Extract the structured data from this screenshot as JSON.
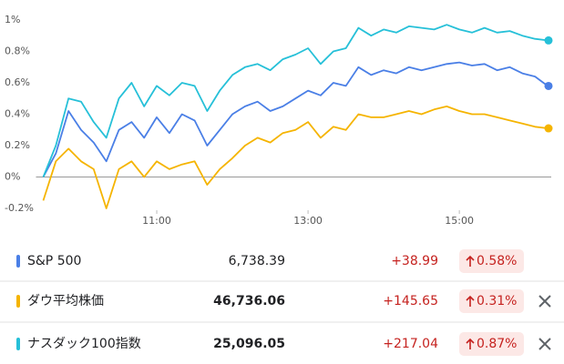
{
  "chart_data": {
    "type": "line",
    "x": [
      "09:30",
      "09:40",
      "09:50",
      "10:00",
      "10:10",
      "10:20",
      "10:30",
      "10:40",
      "10:50",
      "11:00",
      "11:10",
      "11:20",
      "11:30",
      "11:40",
      "11:50",
      "12:00",
      "12:10",
      "12:20",
      "12:30",
      "12:40",
      "12:50",
      "13:00",
      "13:10",
      "13:20",
      "13:30",
      "13:40",
      "13:50",
      "14:00",
      "14:10",
      "14:20",
      "14:30",
      "14:40",
      "14:50",
      "15:00",
      "15:10",
      "15:20",
      "15:30",
      "15:40",
      "15:50",
      "15:55",
      "16:00"
    ],
    "xticks": [
      "11:00",
      "13:00",
      "15:00"
    ],
    "ylim": [
      -0.2,
      1
    ],
    "yticks": [
      {
        "value": -0.2,
        "label": "-0.2%"
      },
      {
        "value": 0,
        "label": "0%"
      },
      {
        "value": 0.2,
        "label": "0.2%"
      },
      {
        "value": 0.4,
        "label": "0.4%"
      },
      {
        "value": 0.6,
        "label": "0.6%"
      },
      {
        "value": 0.8,
        "label": "0.8%"
      },
      {
        "value": 1,
        "label": "1%"
      }
    ],
    "zero_line": true,
    "series": [
      {
        "name": "S&P 500",
        "color": "#4a7fe6",
        "values": [
          0,
          0.15,
          0.42,
          0.3,
          0.22,
          0.1,
          0.3,
          0.35,
          0.25,
          0.38,
          0.28,
          0.4,
          0.36,
          0.2,
          0.3,
          0.4,
          0.45,
          0.48,
          0.42,
          0.45,
          0.5,
          0.55,
          0.52,
          0.6,
          0.58,
          0.7,
          0.65,
          0.68,
          0.66,
          0.7,
          0.68,
          0.7,
          0.72,
          0.73,
          0.71,
          0.72,
          0.68,
          0.7,
          0.66,
          0.64,
          0.58
        ]
      },
      {
        "name": "ダウ平均株価",
        "color": "#f5b400",
        "values": [
          -0.15,
          0.1,
          0.18,
          0.1,
          0.05,
          -0.2,
          0.05,
          0.1,
          0.0,
          0.1,
          0.05,
          0.08,
          0.1,
          -0.05,
          0.05,
          0.12,
          0.2,
          0.25,
          0.22,
          0.28,
          0.3,
          0.35,
          0.25,
          0.32,
          0.3,
          0.4,
          0.38,
          0.38,
          0.4,
          0.42,
          0.4,
          0.43,
          0.45,
          0.42,
          0.4,
          0.4,
          0.38,
          0.36,
          0.34,
          0.32,
          0.31
        ]
      },
      {
        "name": "ナスダック100指数",
        "color": "#26c0d8",
        "values": [
          0,
          0.2,
          0.5,
          0.48,
          0.35,
          0.25,
          0.5,
          0.6,
          0.45,
          0.58,
          0.52,
          0.6,
          0.58,
          0.42,
          0.55,
          0.65,
          0.7,
          0.72,
          0.68,
          0.75,
          0.78,
          0.82,
          0.72,
          0.8,
          0.82,
          0.95,
          0.9,
          0.94,
          0.92,
          0.96,
          0.95,
          0.94,
          0.97,
          0.94,
          0.92,
          0.95,
          0.92,
          0.93,
          0.9,
          0.88,
          0.87
        ]
      }
    ]
  },
  "quotes": [
    {
      "price": "6,738.39",
      "change": "+38.99",
      "change_pct": "0.58%",
      "removable": false,
      "bold": false
    },
    {
      "price": "46,736.06",
      "change": "+145.65",
      "change_pct": "0.31%",
      "removable": true,
      "bold": true
    },
    {
      "price": "25,096.05",
      "change": "+217.04",
      "change_pct": "0.87%",
      "removable": true,
      "bold": true
    }
  ]
}
